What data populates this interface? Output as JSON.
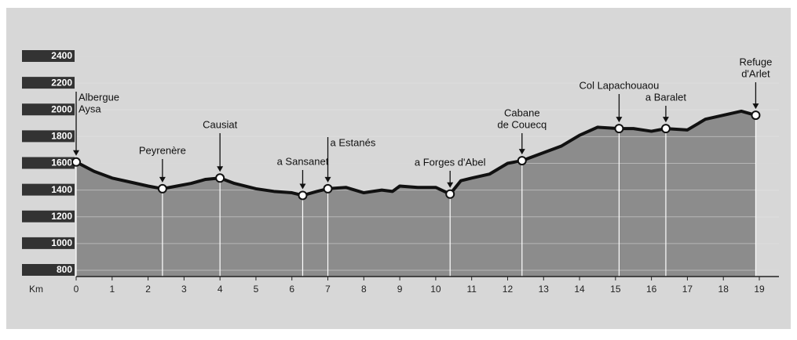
{
  "chart_data": {
    "type": "area",
    "x_label": "Km",
    "x": [
      0,
      0.5,
      1,
      1.5,
      2,
      2.4,
      2.8,
      3.2,
      3.6,
      4,
      4.4,
      5,
      5.5,
      6,
      6.3,
      6.7,
      7,
      7.5,
      8,
      8.5,
      8.8,
      9,
      9.5,
      10,
      10.4,
      10.7,
      11,
      11.5,
      12,
      12.4,
      13,
      13.5,
      14,
      14.5,
      15.1,
      15.5,
      16,
      16.4,
      17,
      17.5,
      18,
      18.5,
      18.9
    ],
    "values": [
      1610,
      1540,
      1490,
      1460,
      1430,
      1410,
      1430,
      1450,
      1480,
      1490,
      1450,
      1410,
      1390,
      1380,
      1360,
      1390,
      1410,
      1420,
      1380,
      1400,
      1390,
      1430,
      1420,
      1420,
      1370,
      1470,
      1490,
      1520,
      1600,
      1620,
      1680,
      1730,
      1810,
      1870,
      1860,
      1860,
      1840,
      1860,
      1850,
      1930,
      1960,
      1990,
      1960
    ],
    "color": "#8c8c8c",
    "line_color": "#111111",
    "xlim": [
      0,
      19
    ],
    "xticks": [
      0,
      1,
      2,
      3,
      4,
      5,
      6,
      7,
      8,
      9,
      10,
      11,
      12,
      13,
      14,
      15,
      16,
      17,
      18,
      19
    ],
    "ylim": [
      800,
      2400
    ],
    "yticks": [
      800,
      1000,
      1200,
      1400,
      1600,
      1800,
      2000,
      2200,
      2400
    ],
    "grid": true,
    "waypoints": [
      {
        "label": [
          "Albergue",
          "Aysa"
        ],
        "km": 0,
        "elevation": 1610
      },
      {
        "label": [
          "Peyrenère"
        ],
        "km": 2.4,
        "elevation": 1410
      },
      {
        "label": [
          "Causiat"
        ],
        "km": 4,
        "elevation": 1490
      },
      {
        "label": [
          "a Sansanet"
        ],
        "km": 6.3,
        "elevation": 1360
      },
      {
        "label": [
          "a Estanés"
        ],
        "km": 7,
        "elevation": 1410
      },
      {
        "label": [
          "a Forges d'Abel"
        ],
        "km": 10.4,
        "elevation": 1370
      },
      {
        "label": [
          "Cabane",
          "de Couecq"
        ],
        "km": 12.4,
        "elevation": 1620
      },
      {
        "label": [
          "Col Lapachouaou"
        ],
        "km": 15.1,
        "elevation": 1860
      },
      {
        "label": [
          "a Baralet"
        ],
        "km": 16.4,
        "elevation": 1860
      },
      {
        "label": [
          "Refuge",
          "d'Arlet"
        ],
        "km": 18.9,
        "elevation": 1960
      }
    ]
  }
}
